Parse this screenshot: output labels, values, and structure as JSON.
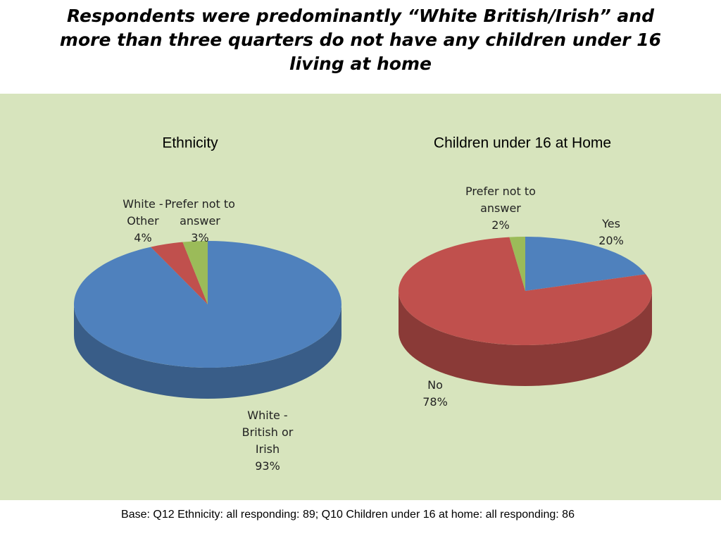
{
  "header": {
    "title": "Respondents were predominantly “White British/Irish” and more than three quarters do not have any children under 16 living at home"
  },
  "chart_data": [
    {
      "type": "pie",
      "title": "Ethnicity",
      "categories": [
        "White - British or Irish",
        "White - Other",
        "Prefer not to answer"
      ],
      "values": [
        93,
        4,
        3
      ],
      "value_labels": [
        "93%",
        "4%",
        "3%"
      ],
      "colors": [
        "#4f81bd",
        "#c0504d",
        "#9bbb59"
      ]
    },
    {
      "type": "pie",
      "title": "Children under 16 at Home",
      "categories": [
        "Yes",
        "No",
        "Prefer not to answer"
      ],
      "values": [
        20,
        78,
        2
      ],
      "value_labels": [
        "20%",
        "78%",
        "2%"
      ],
      "colors": [
        "#4f81bd",
        "#c0504d",
        "#9bbb59"
      ]
    }
  ],
  "footer": {
    "note": "Base: Q12 Ethnicity: all responding: 89; Q10 Children under 16 at home: all responding: 86"
  }
}
